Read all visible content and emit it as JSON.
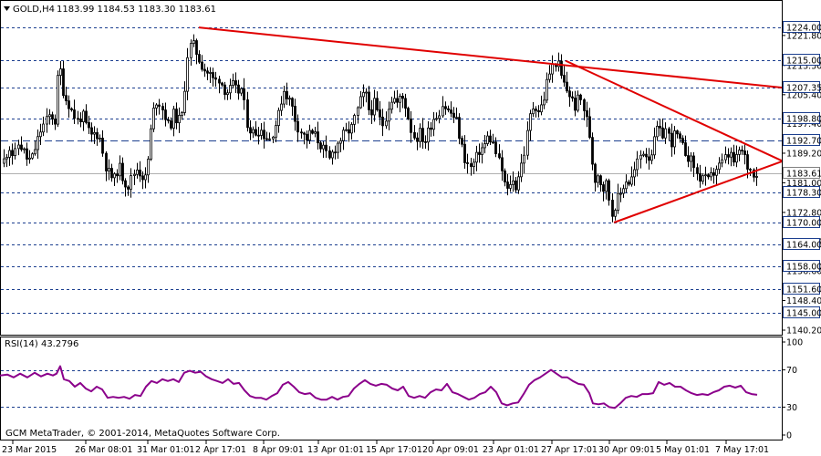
{
  "header": {
    "symbol_text": "GOLD,H4",
    "ohlc_text": "1183.99 1184.53 1183.30 1183.61",
    "dropdown_icon": "triangle-down-icon"
  },
  "footer": {
    "copyright": "GCM MetaTrader, © 2001-2014, MetaQuotes Software Corp."
  },
  "colors": {
    "candle": "#000000",
    "trendline": "#e00000",
    "grid": "#1c3f8f",
    "rsi_line": "#8b008b",
    "tag_bg": "#ffffff",
    "background": "#ffffff"
  },
  "chart_data": [
    {
      "type": "candlestick",
      "title": "GOLD,H4",
      "ylim": [
        1140.2,
        1229.6
      ],
      "y_tick_labels": [
        "1221.80",
        "1213.50",
        "1205.40",
        "1197.40",
        "1189.20",
        "1181.00",
        "1172.80",
        "1164.80",
        "1156.60",
        "1148.40",
        "1140.20"
      ],
      "x_tick_labels": [
        "23 Mar 2015",
        "26 Mar 08:01",
        "31 Mar 01:01",
        "2 Apr 17:01",
        "8 Apr 09:01",
        "13 Apr 01:01",
        "15 Apr 17:01",
        "20 Apr 09:01",
        "23 Apr 01:01",
        "27 Apr 17:01",
        "30 Apr 09:01",
        "5 May 01:01",
        "7 May 17:01"
      ],
      "level_labels": [
        "1224.00",
        "1215.00",
        "1207.35",
        "1198.80",
        "1192.70",
        "1183.61",
        "1178.30",
        "1170.00",
        "1164.00",
        "1158.00",
        "1151.60",
        "1145.00"
      ],
      "levels": [
        1224.0,
        1215.0,
        1207.35,
        1198.8,
        1192.7,
        1183.61,
        1178.3,
        1170.0,
        1164.0,
        1158.0,
        1151.6,
        1145.0
      ],
      "current_price": 1183.61,
      "close_path": [
        [
          0,
          1184
        ],
        [
          5,
          1188
        ],
        [
          10,
          1191
        ],
        [
          15,
          1188
        ],
        [
          20,
          1192
        ],
        [
          25,
          1190
        ],
        [
          30,
          1187
        ],
        [
          35,
          1188
        ],
        [
          40,
          1192
        ],
        [
          45,
          1196
        ],
        [
          50,
          1198
        ],
        [
          55,
          1200
        ],
        [
          60,
          1198
        ],
        [
          63,
          1210
        ],
        [
          66,
          1212
        ],
        [
          70,
          1205
        ],
        [
          75,
          1203
        ],
        [
          80,
          1200
        ],
        [
          85,
          1198
        ],
        [
          90,
          1200
        ],
        [
          95,
          1196
        ],
        [
          100,
          1194
        ],
        [
          105,
          1195
        ],
        [
          110,
          1193
        ],
        [
          115,
          1186
        ],
        [
          120,
          1183
        ],
        [
          125,
          1182
        ],
        [
          130,
          1186
        ],
        [
          135,
          1182
        ],
        [
          140,
          1180
        ],
        [
          145,
          1183
        ],
        [
          150,
          1185
        ],
        [
          155,
          1183
        ],
        [
          160,
          1182
        ],
        [
          165,
          1195
        ],
        [
          170,
          1204
        ],
        [
          175,
          1203
        ],
        [
          180,
          1200
        ],
        [
          185,
          1196
        ],
        [
          190,
          1200
        ],
        [
          195,
          1198
        ],
        [
          200,
          1200
        ],
        [
          205,
          1216
        ],
        [
          210,
          1220
        ],
        [
          215,
          1217
        ],
        [
          220,
          1214
        ],
        [
          225,
          1212
        ],
        [
          230,
          1211
        ],
        [
          235,
          1209
        ],
        [
          240,
          1210
        ],
        [
          245,
          1207
        ],
        [
          250,
          1206
        ],
        [
          255,
          1208
        ],
        [
          260,
          1206
        ],
        [
          265,
          1207
        ],
        [
          270,
          1198
        ],
        [
          275,
          1195
        ],
        [
          280,
          1195
        ],
        [
          285,
          1196
        ],
        [
          290,
          1194
        ],
        [
          295,
          1193
        ],
        [
          300,
          1196
        ],
        [
          305,
          1200
        ],
        [
          310,
          1207
        ],
        [
          315,
          1205
        ],
        [
          320,
          1202
        ],
        [
          325,
          1197
        ],
        [
          330,
          1195
        ],
        [
          335,
          1193
        ],
        [
          340,
          1195
        ],
        [
          345,
          1194
        ],
        [
          350,
          1192
        ],
        [
          355,
          1190
        ],
        [
          360,
          1187
        ],
        [
          365,
          1190
        ],
        [
          370,
          1192
        ],
        [
          375,
          1194
        ],
        [
          380,
          1195
        ],
        [
          385,
          1196
        ],
        [
          390,
          1200
        ],
        [
          395,
          1204
        ],
        [
          400,
          1206
        ],
        [
          405,
          1200
        ],
        [
          410,
          1203
        ],
        [
          415,
          1199
        ],
        [
          420,
          1197
        ],
        [
          425,
          1202
        ],
        [
          430,
          1205
        ],
        [
          435,
          1203
        ],
        [
          440,
          1205
        ],
        [
          445,
          1202
        ],
        [
          450,
          1196
        ],
        [
          455,
          1193
        ],
        [
          460,
          1195
        ],
        [
          465,
          1192
        ],
        [
          470,
          1196
        ],
        [
          475,
          1199
        ],
        [
          480,
          1200
        ],
        [
          485,
          1203
        ],
        [
          490,
          1201
        ],
        [
          495,
          1200
        ],
        [
          500,
          1198
        ],
        [
          505,
          1192
        ],
        [
          510,
          1187
        ],
        [
          515,
          1185
        ],
        [
          520,
          1187
        ],
        [
          525,
          1190
        ],
        [
          530,
          1191
        ],
        [
          535,
          1194
        ],
        [
          540,
          1192
        ],
        [
          545,
          1188
        ],
        [
          550,
          1184
        ],
        [
          555,
          1178
        ],
        [
          560,
          1182
        ],
        [
          565,
          1180
        ],
        [
          570,
          1185
        ],
        [
          575,
          1190
        ],
        [
          580,
          1199
        ],
        [
          585,
          1203
        ],
        [
          590,
          1201
        ],
        [
          595,
          1203
        ],
        [
          600,
          1210
        ],
        [
          605,
          1213
        ],
        [
          610,
          1215
        ],
        [
          615,
          1210
        ],
        [
          620,
          1207
        ],
        [
          625,
          1205
        ],
        [
          630,
          1202
        ],
        [
          635,
          1205
        ],
        [
          640,
          1201
        ],
        [
          645,
          1196
        ],
        [
          648,
          1188
        ],
        [
          652,
          1182
        ],
        [
          656,
          1184
        ],
        [
          660,
          1179
        ],
        [
          665,
          1181
        ],
        [
          670,
          1172
        ],
        [
          675,
          1176
        ],
        [
          680,
          1178
        ],
        [
          685,
          1182
        ],
        [
          690,
          1181
        ],
        [
          695,
          1184
        ],
        [
          700,
          1188
        ],
        [
          705,
          1190
        ],
        [
          710,
          1188
        ],
        [
          715,
          1190
        ],
        [
          720,
          1196
        ],
        [
          725,
          1194
        ],
        [
          730,
          1196
        ],
        [
          735,
          1192
        ],
        [
          740,
          1195
        ],
        [
          745,
          1192
        ],
        [
          750,
          1190
        ],
        [
          755,
          1188
        ],
        [
          760,
          1186
        ],
        [
          765,
          1182
        ],
        [
          770,
          1183
        ],
        [
          775,
          1181
        ],
        [
          780,
          1183
        ],
        [
          785,
          1185
        ],
        [
          790,
          1186
        ],
        [
          795,
          1188
        ],
        [
          800,
          1189
        ],
        [
          805,
          1186
        ],
        [
          810,
          1190
        ],
        [
          815,
          1189
        ],
        [
          820,
          1185
        ],
        [
          825,
          1184
        ],
        [
          830,
          1183.61
        ]
      ],
      "trendlines": [
        {
          "from": [
            218,
            1224.0
          ],
          "to": [
            858,
            1207.35
          ]
        },
        {
          "from": [
            620,
            1214.8
          ],
          "to": [
            858,
            1187.0
          ]
        },
        {
          "from": [
            673,
            1170.0
          ],
          "to": [
            858,
            1187.0
          ]
        }
      ]
    },
    {
      "type": "line",
      "title": "RSI(14) 43.2796",
      "ylim": [
        0,
        100
      ],
      "y_tick_labels": [
        "100",
        "70",
        "30",
        "0"
      ],
      "reference_levels": [
        70,
        30
      ],
      "values": [
        [
          0,
          64
        ],
        [
          8,
          65
        ],
        [
          15,
          62
        ],
        [
          22,
          66
        ],
        [
          30,
          62
        ],
        [
          38,
          67
        ],
        [
          45,
          63
        ],
        [
          52,
          66
        ],
        [
          58,
          64
        ],
        [
          62,
          66
        ],
        [
          66,
          74
        ],
        [
          70,
          60
        ],
        [
          76,
          58
        ],
        [
          82,
          52
        ],
        [
          88,
          56
        ],
        [
          94,
          50
        ],
        [
          100,
          47
        ],
        [
          106,
          52
        ],
        [
          112,
          49
        ],
        [
          118,
          40
        ],
        [
          124,
          41
        ],
        [
          130,
          40
        ],
        [
          136,
          41
        ],
        [
          142,
          39
        ],
        [
          148,
          43
        ],
        [
          154,
          42
        ],
        [
          160,
          52
        ],
        [
          166,
          58
        ],
        [
          172,
          56
        ],
        [
          178,
          60
        ],
        [
          184,
          58
        ],
        [
          190,
          60
        ],
        [
          196,
          57
        ],
        [
          202,
          67
        ],
        [
          208,
          69
        ],
        [
          214,
          67
        ],
        [
          220,
          68
        ],
        [
          226,
          63
        ],
        [
          232,
          60
        ],
        [
          238,
          58
        ],
        [
          244,
          56
        ],
        [
          250,
          60
        ],
        [
          256,
          55
        ],
        [
          262,
          56
        ],
        [
          268,
          48
        ],
        [
          274,
          42
        ],
        [
          280,
          40
        ],
        [
          286,
          40
        ],
        [
          292,
          38
        ],
        [
          298,
          42
        ],
        [
          304,
          45
        ],
        [
          310,
          54
        ],
        [
          316,
          57
        ],
        [
          322,
          52
        ],
        [
          328,
          46
        ],
        [
          334,
          44
        ],
        [
          340,
          45
        ],
        [
          346,
          40
        ],
        [
          352,
          38
        ],
        [
          358,
          38
        ],
        [
          364,
          41
        ],
        [
          370,
          38
        ],
        [
          376,
          41
        ],
        [
          382,
          42
        ],
        [
          388,
          50
        ],
        [
          394,
          55
        ],
        [
          400,
          59
        ],
        [
          406,
          55
        ],
        [
          412,
          53
        ],
        [
          418,
          55
        ],
        [
          424,
          54
        ],
        [
          430,
          50
        ],
        [
          436,
          48
        ],
        [
          442,
          52
        ],
        [
          448,
          42
        ],
        [
          454,
          40
        ],
        [
          460,
          42
        ],
        [
          466,
          40
        ],
        [
          472,
          46
        ],
        [
          478,
          49
        ],
        [
          484,
          48
        ],
        [
          490,
          55
        ],
        [
          496,
          46
        ],
        [
          502,
          44
        ],
        [
          508,
          41
        ],
        [
          514,
          38
        ],
        [
          520,
          40
        ],
        [
          526,
          44
        ],
        [
          532,
          46
        ],
        [
          538,
          52
        ],
        [
          544,
          46
        ],
        [
          550,
          34
        ],
        [
          556,
          32
        ],
        [
          562,
          34
        ],
        [
          568,
          35
        ],
        [
          574,
          44
        ],
        [
          580,
          54
        ],
        [
          586,
          59
        ],
        [
          592,
          62
        ],
        [
          598,
          66
        ],
        [
          604,
          70
        ],
        [
          610,
          66
        ],
        [
          616,
          62
        ],
        [
          622,
          62
        ],
        [
          628,
          58
        ],
        [
          634,
          55
        ],
        [
          640,
          54
        ],
        [
          646,
          45
        ],
        [
          650,
          34
        ],
        [
          656,
          33
        ],
        [
          662,
          34
        ],
        [
          668,
          30
        ],
        [
          674,
          29
        ],
        [
          680,
          34
        ],
        [
          686,
          40
        ],
        [
          692,
          42
        ],
        [
          698,
          41
        ],
        [
          704,
          44
        ],
        [
          710,
          44
        ],
        [
          716,
          45
        ],
        [
          722,
          57
        ],
        [
          728,
          54
        ],
        [
          734,
          56
        ],
        [
          740,
          52
        ],
        [
          746,
          52
        ],
        [
          752,
          48
        ],
        [
          758,
          45
        ],
        [
          764,
          43
        ],
        [
          770,
          44
        ],
        [
          776,
          43
        ],
        [
          782,
          46
        ],
        [
          788,
          48
        ],
        [
          794,
          52
        ],
        [
          800,
          53
        ],
        [
          806,
          51
        ],
        [
          812,
          53
        ],
        [
          818,
          46
        ],
        [
          824,
          44
        ],
        [
          830,
          43.28
        ]
      ]
    }
  ]
}
